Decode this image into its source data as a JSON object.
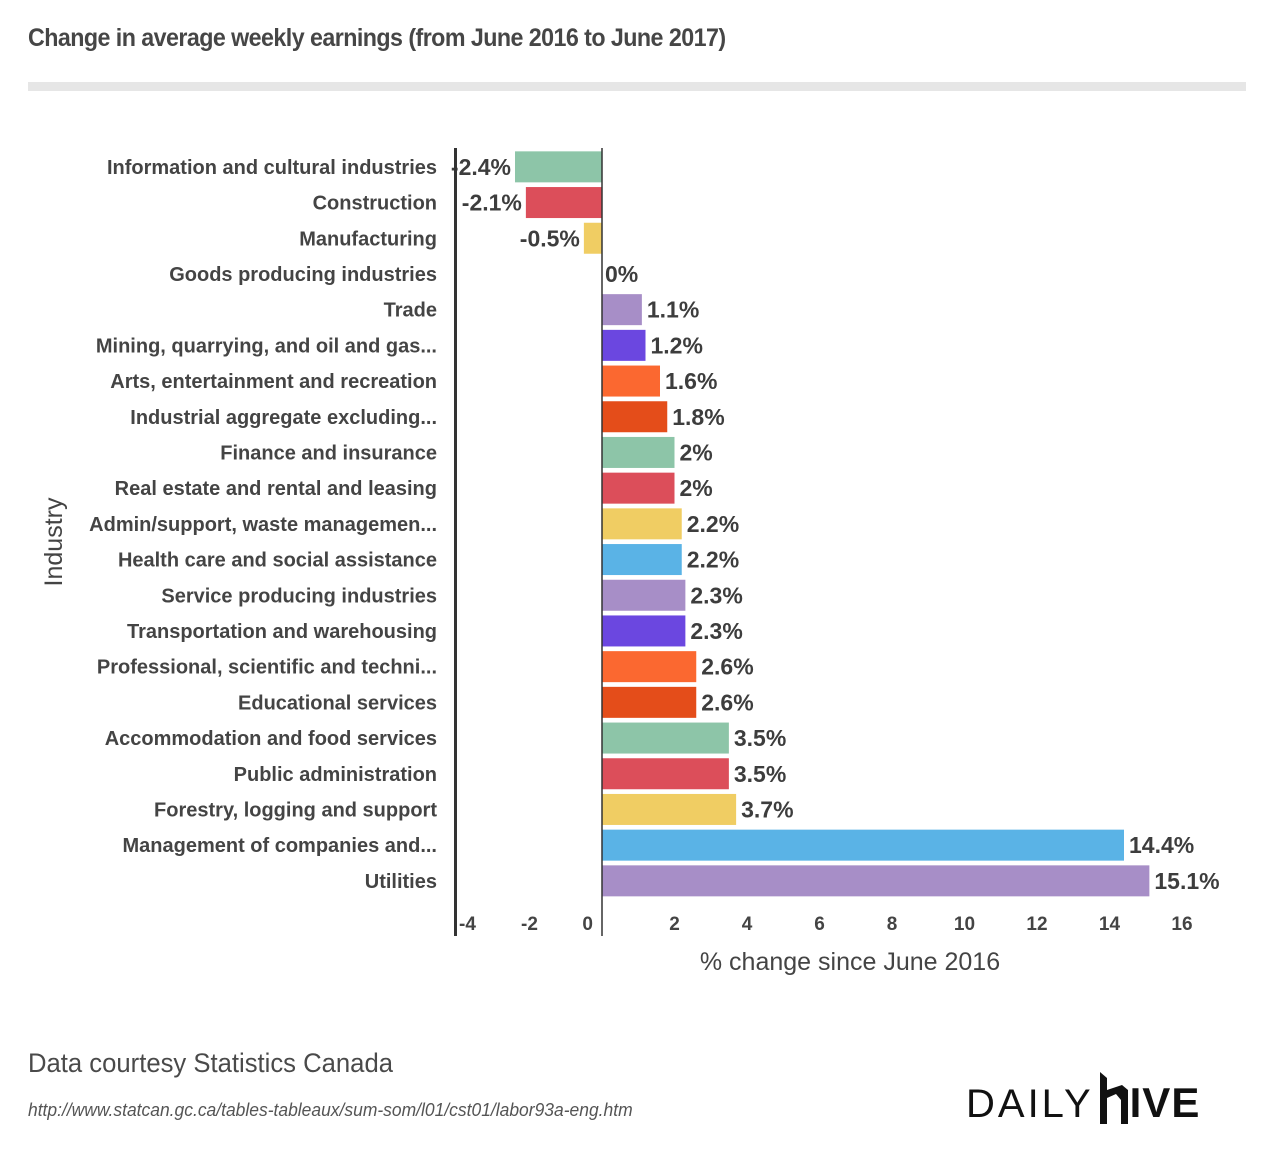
{
  "header": {
    "title": "Change in average weekly earnings (from June 2016 to June 2017)"
  },
  "chart_data": {
    "type": "bar",
    "orientation": "horizontal",
    "title": "Change in average weekly earnings (from June 2016 to June 2017)",
    "xlabel": "% change since June 2016",
    "ylabel": "Industry",
    "xlim": [
      -4,
      16
    ],
    "xticks": [
      -4,
      -2,
      0,
      2,
      4,
      6,
      8,
      10,
      12,
      14,
      16
    ],
    "xtick_labels": [
      "-4",
      "-2",
      "0",
      "2",
      "4",
      "6",
      "8",
      "10",
      "12",
      "14",
      "16"
    ],
    "grid": false,
    "legend": "none",
    "categories": [
      "Information and cultural industries",
      "Construction",
      "Manufacturing",
      "Goods producing industries",
      "Trade",
      "Mining, quarrying, and oil and gas...",
      "Arts, entertainment and recreation",
      "Industrial aggregate excluding...",
      "Finance and insurance",
      "Real estate and rental and leasing",
      "Admin/support, waste managemen...",
      "Health care and social assistance",
      "Service producing industries",
      "Transportation and warehousing",
      "Professional, scientific and techni...",
      "Educational services",
      "Accommodation and food services",
      "Public administration",
      "Forestry, logging and support",
      "Management of companies and...",
      "Utilities"
    ],
    "values": [
      -2.4,
      -2.1,
      -0.5,
      0,
      1.1,
      1.2,
      1.6,
      1.8,
      2,
      2,
      2.2,
      2.2,
      2.3,
      2.3,
      2.6,
      2.6,
      3.5,
      3.5,
      3.7,
      14.4,
      15.1
    ],
    "value_labels": [
      "-2.4%",
      "-2.1%",
      "-0.5%",
      "0%",
      "1.1%",
      "1.2%",
      "1.6%",
      "1.8%",
      "2%",
      "2%",
      "2.2%",
      "2.2%",
      "2.3%",
      "2.3%",
      "2.6%",
      "2.6%",
      "3.5%",
      "3.5%",
      "3.7%",
      "14.4%",
      "15.1%"
    ],
    "colors": [
      "#8dc5a8",
      "#dc4e5a",
      "#f0cd63",
      "#a78ec7",
      "#a78ec7",
      "#6b47e0",
      "#fb6830",
      "#e44d1a",
      "#8dc5a8",
      "#dc4e5a",
      "#f0cd63",
      "#5ab3e6",
      "#a78ec7",
      "#6b47e0",
      "#fb6830",
      "#e44d1a",
      "#8dc5a8",
      "#dc4e5a",
      "#f0cd63",
      "#5ab3e6",
      "#a78ec7"
    ]
  },
  "footer": {
    "source": "Data courtesy Statistics Canada",
    "url": "http://www.statcan.gc.ca/tables-tableaux/sum-som/l01/cst01/labor93a-eng.htm",
    "logo_left": "DAILY",
    "logo_right": "IVE"
  }
}
